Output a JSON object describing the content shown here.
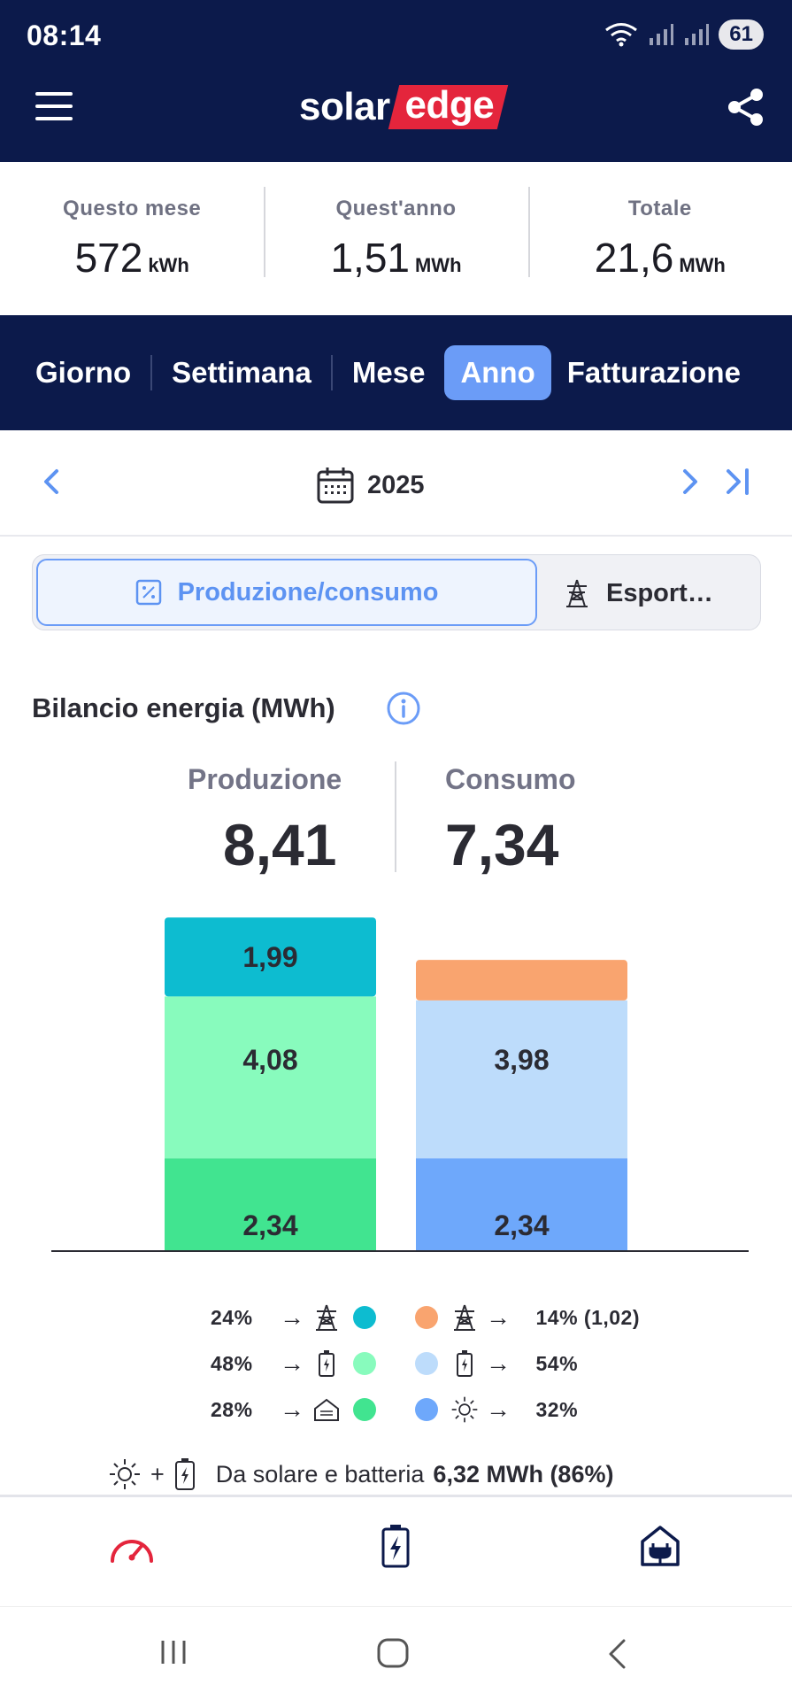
{
  "status_bar": {
    "time": "08:14",
    "battery": "61"
  },
  "header": {
    "logo_part1": "solar",
    "logo_part2": "edge",
    "menu_icon": "hamburger-icon",
    "share_icon": "share-icon"
  },
  "summary": [
    {
      "label": "Questo mese",
      "value": "572",
      "unit": "kWh"
    },
    {
      "label": "Quest'anno",
      "value": "1,51",
      "unit": "MWh"
    },
    {
      "label": "Totale",
      "value": "21,6",
      "unit": "MWh"
    }
  ],
  "tabs": [
    {
      "label": "Giorno",
      "active": false
    },
    {
      "label": "Settimana",
      "active": false
    },
    {
      "label": "Mese",
      "active": false
    },
    {
      "label": "Anno",
      "active": true
    },
    {
      "label": "Fatturazione",
      "active": false
    }
  ],
  "date_nav": {
    "year": "2025"
  },
  "segment": {
    "left_label": "Produzione/consumo",
    "right_label": "Esport…"
  },
  "balance": {
    "title": "Bilancio energia (MWh)",
    "production_label": "Produzione",
    "production_value": "8,41",
    "consumption_label": "Consumo",
    "consumption_value": "7,34"
  },
  "colors": {
    "header_bg": "#0c1a4b",
    "accent_blue": "#6b9cf7",
    "prod_export": "#0dbcd0",
    "prod_battery": "#88fbbd",
    "prod_self": "#41e490",
    "cons_import": "#f9a46f",
    "cons_battery": "#bddcfb",
    "cons_solar": "#6ea8fb",
    "logo_red": "#e4253c"
  },
  "chart_data": {
    "type": "bar",
    "stacked": true,
    "categories": [
      "Produzione",
      "Consumo"
    ],
    "unit": "MWh",
    "series": [
      {
        "name": "",
        "category": "Produzione",
        "values_bottom_to_top": [
          2.34,
          4.08,
          1.99
        ],
        "labels": [
          "2,34",
          "4,08",
          "1,99"
        ],
        "colors": [
          "#41e490",
          "#88fbbd",
          "#0dbcd0"
        ]
      },
      {
        "name": "",
        "category": "Consumo",
        "values_bottom_to_top": [
          2.34,
          3.98,
          1.02
        ],
        "labels": [
          "2,34",
          "3,98",
          ""
        ],
        "colors": [
          "#6ea8fb",
          "#bddcfb",
          "#f9a46f"
        ]
      }
    ]
  },
  "legend": {
    "left": [
      {
        "pct": "24%",
        "icon": "pylon-icon",
        "color": "#0dbcd0"
      },
      {
        "pct": "48%",
        "icon": "battery-icon",
        "color": "#88fbbd"
      },
      {
        "pct": "28%",
        "icon": "house-icon",
        "color": "#41e490"
      }
    ],
    "right": [
      {
        "pct": "14% (1,02)",
        "icon": "pylon-icon",
        "color": "#f9a46f"
      },
      {
        "pct": "54%",
        "icon": "battery-icon",
        "color": "#bddcfb"
      },
      {
        "pct": "32%",
        "icon": "sun-icon",
        "color": "#6ea8fb"
      }
    ]
  },
  "solar_summary": {
    "label": "Da solare e batteria",
    "value": "6,32 MWh (86%)",
    "plus": "+"
  },
  "bottom_nav": [
    "gauge-icon",
    "battery-icon",
    "home-plug-icon"
  ],
  "system_nav": [
    "recents-icon",
    "home-icon",
    "back-icon"
  ]
}
